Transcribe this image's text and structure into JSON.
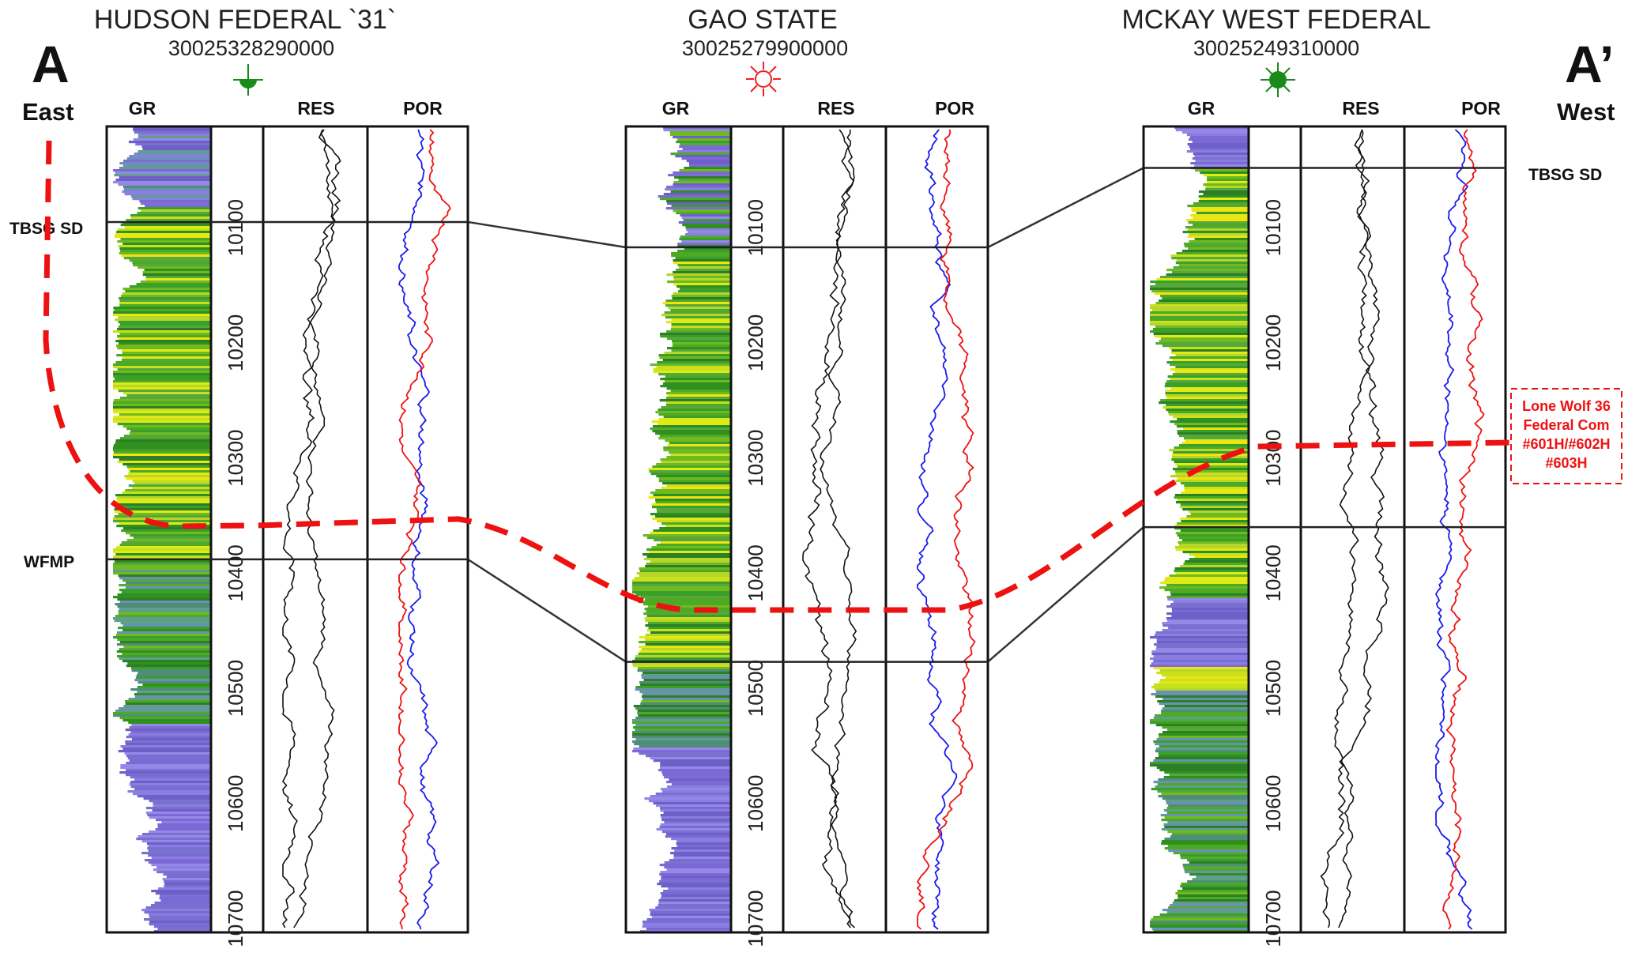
{
  "section": {
    "start_label": "A",
    "end_label": "A’",
    "start_direction": "East",
    "end_direction": "West"
  },
  "track_headers": {
    "gr": "GR",
    "res": "RES",
    "por": "POR"
  },
  "depth_ticks": [
    "10100",
    "10200",
    "10300",
    "10400",
    "10500",
    "10600",
    "10700"
  ],
  "wells": [
    {
      "name": "HUDSON FEDERAL `31`",
      "api": "30025328290000",
      "symbol": "oil-well-icon",
      "symbol_color": "#1a8a1a",
      "tops": {
        "TBSG SD": 10095,
        "WFMP": 10388
      },
      "lateral_depth": 10353
    },
    {
      "name": "GAO STATE",
      "api": "30025279900000",
      "symbol": "dry-hole-icon",
      "symbol_color": "#ee2222",
      "tops": {
        "TBSG SD": 10117,
        "WFMP": 10477
      },
      "lateral_depth": 10432
    },
    {
      "name": "MCKAY WEST FEDERAL",
      "api": "30025249310000",
      "symbol": "gas-well-icon",
      "symbol_color": "#1a8a1a",
      "tops": {
        "TBSG SD": 10048,
        "WFMP": 10360
      },
      "lateral_depth": 10290
    }
  ],
  "markers": [
    {
      "name": "TBSG SD"
    },
    {
      "name": "WFMP"
    }
  ],
  "callout": {
    "lines": [
      "Lone Wolf 36",
      "Federal Com",
      "#601H/#602H",
      "#603H"
    ],
    "color": "#ee1111"
  },
  "colors": {
    "correlation": "#333333",
    "lateral": "#ee1111",
    "por_blue": "#1a1aee",
    "por_red": "#ee1111"
  }
}
